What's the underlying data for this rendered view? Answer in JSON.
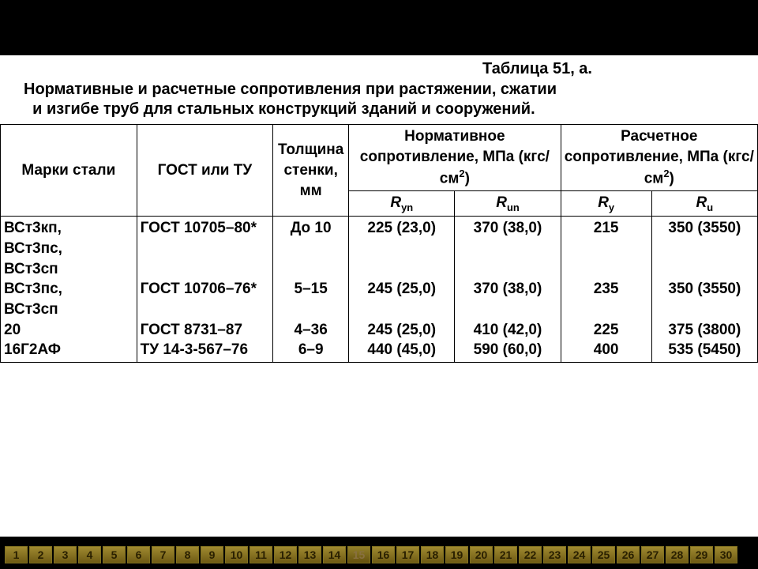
{
  "colors": {
    "page_bg": "#000000",
    "card_bg": "#ffffff",
    "text": "#000000",
    "border": "#000000",
    "nav_bg": "#000000",
    "nav_btn_bg_top": "#a08a30",
    "nav_btn_bg_bottom": "#6e5a14",
    "nav_btn_border": "#807020",
    "nav_btn_text": "#2a2000",
    "nav_btn_active_text": "#887040"
  },
  "typography": {
    "family": "Arial",
    "title_fontsize_pt": 15,
    "body_fontsize_pt": 14,
    "nav_fontsize_pt": 11,
    "weight": "bold"
  },
  "title_label": "Таблица 51, а.",
  "subtitle_line1": "Нормативные и расчетные сопротивления при растяжении, сжатии",
  "subtitle_line2": "и изгибе труб для стальных конструкций зданий и сооружений.",
  "table": {
    "type": "table",
    "col_widths_pct": [
      18,
      18,
      10,
      14,
      14,
      12,
      14
    ],
    "header": {
      "c1": "Марки стали",
      "c2": "ГОСТ или ТУ",
      "c3": "Толщина стенки, мм",
      "g1": "Нормативное сопротивление, МПа (кгс/см",
      "g1_sup": "2",
      "g1_tail": ")",
      "g2": "Расчетное сопротивление, МПа  (кгс/см",
      "g2_sup": "2",
      "g2_tail": ")",
      "s1_sym": "R",
      "s1_sub": "yn",
      "s2_sym": "R",
      "s2_sub": "un",
      "s3_sym": "R",
      "s3_sub": "y",
      "s4_sym": "R",
      "s4_sub": "u"
    },
    "rows": [
      {
        "steel": [
          "ВСт3кп,",
          "ВСт3пс,",
          "ВСт3сп"
        ],
        "gost": [
          "ГОСТ 10705–80*"
        ],
        "thk": "До 10",
        "ryn": "225 (23,0)",
        "run": "370 (38,0)",
        "ry": "215",
        "ru": "350 (3550)"
      },
      {
        "steel": [
          "ВСт3пс,",
          "ВСт3сп"
        ],
        "gost": [
          "ГОСТ 10706–76*"
        ],
        "thk": "5–15",
        "ryn": "245 (25,0)",
        "run": "370 (38,0)",
        "ry": "235",
        "ru": "350 (3550)"
      },
      {
        "steel": [
          "20"
        ],
        "gost": [
          "ГОСТ 8731–87"
        ],
        "thk": "4–36",
        "ryn": "245 (25,0)",
        "run": "410 (42,0)",
        "ry": "225",
        "ru": "375 (3800)"
      },
      {
        "steel": [
          "16Г2АФ"
        ],
        "gost": [
          "ТУ 14-3-567–76"
        ],
        "thk": "6–9",
        "ryn": "440 (45,0)",
        "run": "590 (60,0)",
        "ry": "400",
        "ru": "535 (5450)"
      }
    ]
  },
  "nav": {
    "count": 30,
    "active_index": 15
  }
}
